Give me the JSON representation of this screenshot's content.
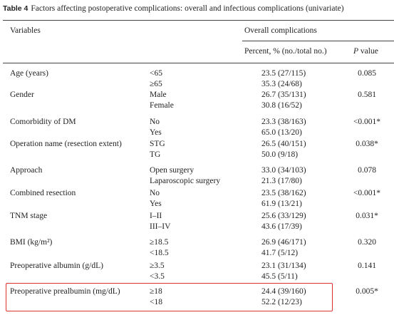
{
  "caption": {
    "label": "Table 4",
    "text": "Factors affecting postoperative complications: overall and infectious complications (univariate)"
  },
  "header": {
    "variables": "Variables",
    "group": "Overall complications",
    "percent": "Percent, % (no./total no.)",
    "p_italic": "P",
    "p_rest": "value"
  },
  "rows": [
    {
      "variable": "Age (years)",
      "levels": [
        "<65",
        "≥65"
      ],
      "percents": [
        "23.5 (27/115)",
        "35.3 (24/68)"
      ],
      "p": "0.085"
    },
    {
      "variable": "Gender",
      "levels": [
        "Male",
        "Female"
      ],
      "percents": [
        "26.7 (35/131)",
        "30.8 (16/52)"
      ],
      "p": "0.581"
    },
    {
      "variable": "Comorbidity of DM",
      "levels": [
        "No",
        "Yes"
      ],
      "percents": [
        "23.3 (38/163)",
        "65.0 (13/20)"
      ],
      "p": "<0.001*"
    },
    {
      "variable": "Operation name (resection extent)",
      "levels": [
        "STG",
        "TG"
      ],
      "percents": [
        "26.5 (40/151)",
        "50.0 (9/18)"
      ],
      "p": "0.038*"
    },
    {
      "variable": "Approach",
      "levels": [
        "Open surgery",
        "Laparoscopic surgery"
      ],
      "percents": [
        "33.0 (34/103)",
        "21.3 (17/80)"
      ],
      "p": "0.078"
    },
    {
      "variable": "Combined resection",
      "levels": [
        "No",
        "Yes"
      ],
      "percents": [
        "23.5 (38/162)",
        "61.9 (13/21)"
      ],
      "p": "<0.001*"
    },
    {
      "variable": "TNM stage",
      "levels": [
        "I–II",
        "III–IV"
      ],
      "percents": [
        "25.6 (33/129)",
        "43.6 (17/39)"
      ],
      "p": "0.031*"
    },
    {
      "variable": "BMI (kg/m²)",
      "levels": [
        "≥18.5",
        "<18.5"
      ],
      "percents": [
        "26.9 (46/171)",
        "41.7 (5/12)"
      ],
      "p": "0.320"
    },
    {
      "variable": "Preoperative albumin (g/dL)",
      "levels": [
        "≥3.5",
        "<3.5"
      ],
      "percents": [
        "23.1 (31/134)",
        "45.5 (5/11)"
      ],
      "p": "0.141"
    },
    {
      "variable": "Preoperative prealbumin (mg/dL)",
      "levels": [
        "≥18",
        "<18"
      ],
      "percents": [
        "24.4 (39/160)",
        "52.2 (12/23)"
      ],
      "p": "0.005*"
    }
  ]
}
